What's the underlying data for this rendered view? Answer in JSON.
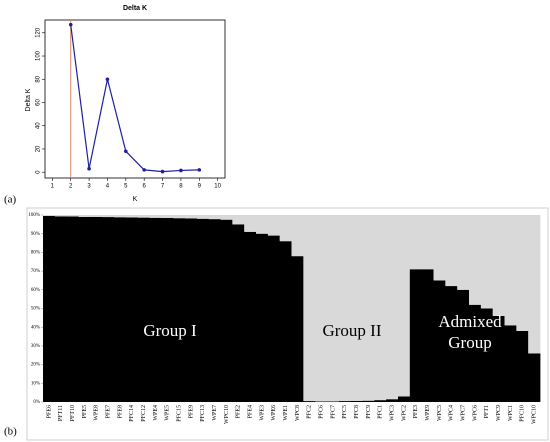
{
  "chart_data": [
    {
      "type": "line",
      "title": "Delta K",
      "xlabel": "K",
      "ylabel": "Delta K",
      "panel_label": "(a)",
      "x": [
        2,
        3,
        4,
        5,
        6,
        7,
        8,
        9
      ],
      "series": [
        {
          "color": "#1f1f9e",
          "values": [
            127,
            3,
            80,
            18,
            2,
            0.5,
            1.5,
            2
          ]
        }
      ],
      "vline": 2,
      "vline_color": "#d98870",
      "xlim": [
        0.6,
        10.4
      ],
      "xticks": [
        1,
        2,
        3,
        4,
        5,
        6,
        7,
        8,
        9,
        10
      ],
      "ylim": [
        -5,
        131
      ],
      "yticks": [
        0,
        20,
        40,
        60,
        80,
        100,
        120
      ]
    },
    {
      "type": "bar",
      "stacked": true,
      "panel_label": "(b)",
      "categories": [
        "PFE6",
        "PFT11",
        "PFT10",
        "PFE5",
        "WPE8",
        "PFE7",
        "PFE8",
        "PFC14",
        "PFC12",
        "WPE4",
        "WPE5",
        "PFC15",
        "PFE9",
        "PFC13",
        "WPE7",
        "WPC10",
        "PFE2",
        "PFE4",
        "WPE3",
        "WPE6",
        "WPE1",
        "WPC8",
        "PFC2",
        "PFC6",
        "PFC7",
        "PFC5",
        "PFC8",
        "PFC9",
        "PFC1",
        "WPC3",
        "WPC2",
        "PFE3",
        "WPE9",
        "WPC5",
        "WPC4",
        "WPC7",
        "WPC6",
        "PFT1",
        "WPC9",
        "WPC1",
        "PFC10",
        "WPC10"
      ],
      "series": [
        {
          "color": "#000000",
          "values": [
            99.5,
            99.3,
            99.2,
            99,
            99,
            98.9,
            98.8,
            98.7,
            98.6,
            98.5,
            98.4,
            98.3,
            98.2,
            98,
            97.8,
            97.5,
            95,
            91,
            90,
            89,
            86,
            78,
            0.5,
            0.3,
            0.3,
            0.5,
            0.6,
            0.7,
            1,
            1.5,
            3,
            71,
            71,
            65,
            62,
            60,
            52,
            50,
            46,
            41,
            38,
            26
          ]
        },
        {
          "color": "#d9d9d9",
          "values": [
            0.5,
            0.7,
            0.8,
            1,
            1,
            1.1,
            1.2,
            1.3,
            1.4,
            1.5,
            1.6,
            1.7,
            1.8,
            2,
            2.2,
            2.5,
            5,
            9,
            10,
            11,
            14,
            22,
            99.5,
            99.7,
            99.7,
            99.5,
            99.4,
            99.3,
            99,
            98.5,
            97,
            29,
            29,
            35,
            38,
            40,
            48,
            50,
            54,
            59,
            62,
            74
          ]
        }
      ],
      "annotations": [
        "Group I",
        "Group II",
        "Admixed Group"
      ],
      "ylim": [
        0,
        100
      ],
      "yticks": [
        {
          "value": 0,
          "label": "0%"
        },
        {
          "value": 10,
          "label": "10%"
        },
        {
          "value": 20,
          "label": "20%"
        },
        {
          "value": 30,
          "label": "30%"
        },
        {
          "value": 40,
          "label": "40%"
        },
        {
          "value": 50,
          "label": "50%"
        },
        {
          "value": 60,
          "label": "60%"
        },
        {
          "value": 70,
          "label": "70%"
        },
        {
          "value": 80,
          "label": "80%"
        },
        {
          "value": 90,
          "label": "90%"
        },
        {
          "value": 100,
          "label": "100%"
        }
      ]
    }
  ]
}
